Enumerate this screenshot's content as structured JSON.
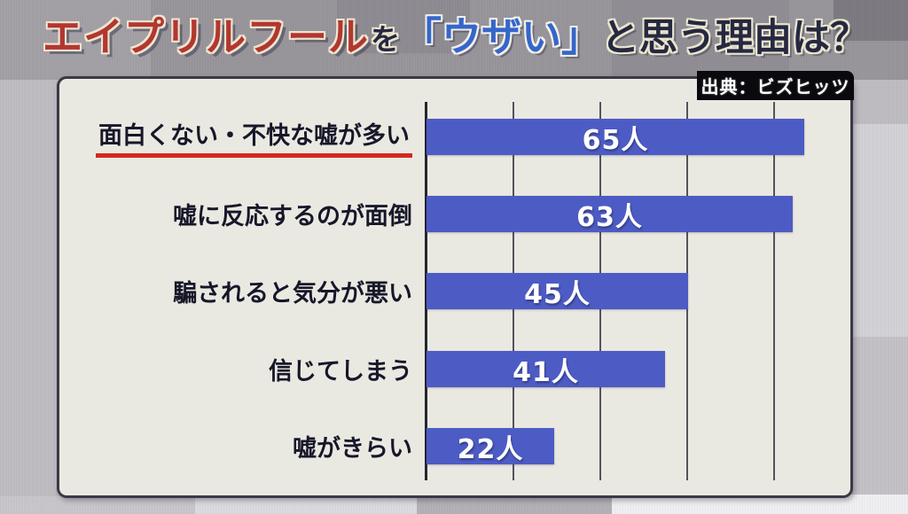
{
  "title": {
    "part1": "エイプリルフール",
    "part2": "を",
    "part3": "「ウザい」",
    "part4": "と思う理由は？"
  },
  "source_label": "出典：ビズヒッツ",
  "chart_data": {
    "type": "bar",
    "orientation": "horizontal",
    "title": "エイプリルフールを「ウザい」と思う理由は？",
    "source": "出典：ビズヒッツ",
    "categories": [
      "面白くない・不快な嘘が多い",
      "嘘に反応するのが面倒",
      "騙されると気分が悪い",
      "信じてしまう",
      "嘘がきらい"
    ],
    "values": [
      65,
      63,
      45,
      41,
      22
    ],
    "value_labels": [
      "65人",
      "63人",
      "45人",
      "41人",
      "22人"
    ],
    "unit": "人",
    "highlighted_category": "面白くない・不快な嘘が多い",
    "xlim": [
      0,
      73
    ],
    "grid": true,
    "legend": false
  },
  "colors": {
    "bar": "#4d5cc5",
    "bar_value_text": "#ffffff",
    "highlight_underline": "#d6281e",
    "title_red": "#b23730",
    "title_blue": "#3566cb",
    "title_dark": "#262840",
    "panel_background": "#eae9e1",
    "panel_border": "#3b3947",
    "source_background": "#0a0a0e",
    "source_text": "#ffffff"
  }
}
